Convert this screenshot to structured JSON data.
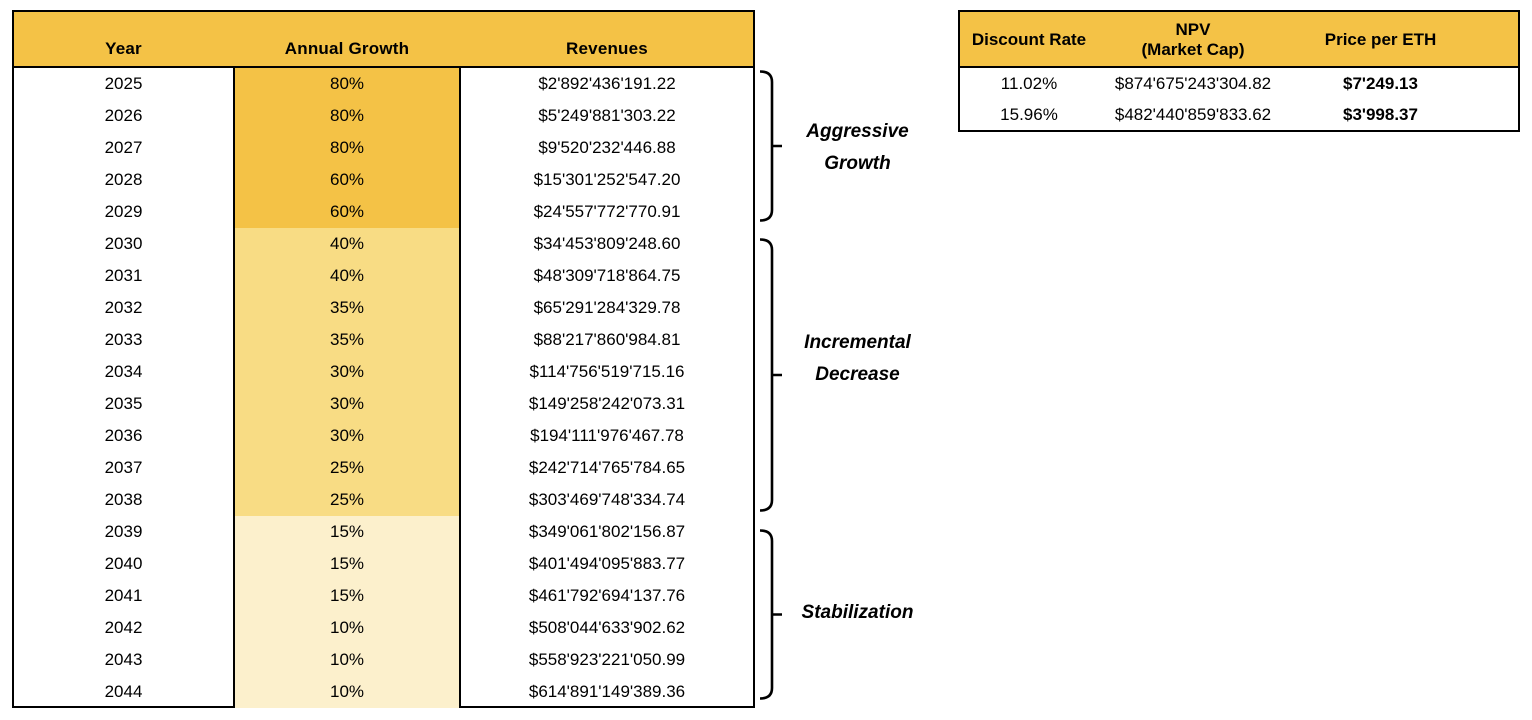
{
  "colors": {
    "header_bg": "#F4C246",
    "block_aggressive": "#F4C246",
    "block_incremental": "#F8DC84",
    "block_stabilization": "#FCF0CC",
    "table_border": "#000000",
    "text": "#000000"
  },
  "revenue_table": {
    "headers": [
      "Year",
      "Annual Growth",
      "Revenues"
    ],
    "rows": [
      {
        "year": "2025",
        "growth": "80%",
        "revenue": "$2'892'436'191.22",
        "block": "aggressive"
      },
      {
        "year": "2026",
        "growth": "80%",
        "revenue": "$5'249'881'303.22",
        "block": "aggressive"
      },
      {
        "year": "2027",
        "growth": "80%",
        "revenue": "$9'520'232'446.88",
        "block": "aggressive"
      },
      {
        "year": "2028",
        "growth": "60%",
        "revenue": "$15'301'252'547.20",
        "block": "aggressive"
      },
      {
        "year": "2029",
        "growth": "60%",
        "revenue": "$24'557'772'770.91",
        "block": "aggressive"
      },
      {
        "year": "2030",
        "growth": "40%",
        "revenue": "$34'453'809'248.60",
        "block": "incremental"
      },
      {
        "year": "2031",
        "growth": "40%",
        "revenue": "$48'309'718'864.75",
        "block": "incremental"
      },
      {
        "year": "2032",
        "growth": "35%",
        "revenue": "$65'291'284'329.78",
        "block": "incremental"
      },
      {
        "year": "2033",
        "growth": "35%",
        "revenue": "$88'217'860'984.81",
        "block": "incremental"
      },
      {
        "year": "2034",
        "growth": "30%",
        "revenue": "$114'756'519'715.16",
        "block": "incremental"
      },
      {
        "year": "2035",
        "growth": "30%",
        "revenue": "$149'258'242'073.31",
        "block": "incremental"
      },
      {
        "year": "2036",
        "growth": "30%",
        "revenue": "$194'111'976'467.78",
        "block": "incremental"
      },
      {
        "year": "2037",
        "growth": "25%",
        "revenue": "$242'714'765'784.65",
        "block": "incremental"
      },
      {
        "year": "2038",
        "growth": "25%",
        "revenue": "$303'469'748'334.74",
        "block": "incremental"
      },
      {
        "year": "2039",
        "growth": "15%",
        "revenue": "$349'061'802'156.87",
        "block": "stabilization"
      },
      {
        "year": "2040",
        "growth": "15%",
        "revenue": "$401'494'095'883.77",
        "block": "stabilization"
      },
      {
        "year": "2041",
        "growth": "15%",
        "revenue": "$461'792'694'137.76",
        "block": "stabilization"
      },
      {
        "year": "2042",
        "growth": "10%",
        "revenue": "$508'044'633'902.62",
        "block": "stabilization"
      },
      {
        "year": "2043",
        "growth": "10%",
        "revenue": "$558'923'221'050.99",
        "block": "stabilization"
      },
      {
        "year": "2044",
        "growth": "10%",
        "revenue": "$614'891'149'389.36",
        "block": "stabilization"
      }
    ]
  },
  "phases": [
    {
      "id": "aggressive-growth",
      "label_lines": [
        "Aggressive",
        "Growth"
      ]
    },
    {
      "id": "incremental-decrease",
      "label_lines": [
        "Incremental",
        "Decrease"
      ]
    },
    {
      "id": "stabilization",
      "label_lines": [
        "Stabilization"
      ]
    }
  ],
  "npv_table": {
    "headers": [
      {
        "label": "Discount Rate",
        "sub": ""
      },
      {
        "label": "NPV",
        "sub": "(Market Cap)"
      },
      {
        "label": "Price per ETH",
        "sub": ""
      }
    ],
    "rows": [
      {
        "discount_rate": "11.02%",
        "npv": "$874'675'243'304.82",
        "price_per_eth": "$7'249.13"
      },
      {
        "discount_rate": "15.96%",
        "npv": "$482'440'859'833.62",
        "price_per_eth": "$3'998.37"
      }
    ]
  }
}
